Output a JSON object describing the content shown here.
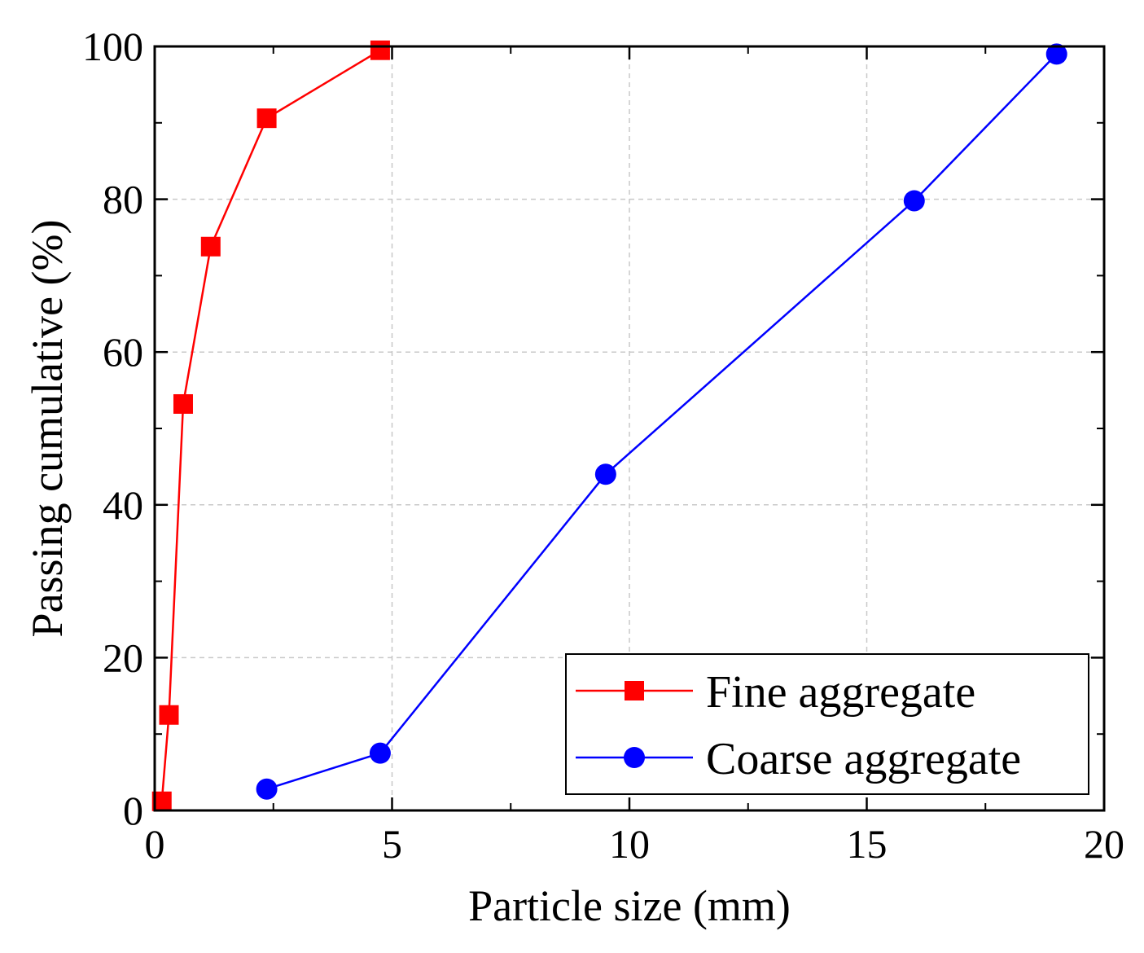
{
  "chart_data": {
    "type": "line",
    "title": "",
    "xlabel": "Particle size (mm)",
    "ylabel": "Passing cumulative (%)",
    "xlim": [
      0,
      20
    ],
    "ylim": [
      0,
      100
    ],
    "xticks": [
      0,
      5,
      10,
      15,
      20
    ],
    "yticks": [
      0,
      20,
      40,
      60,
      80,
      100
    ],
    "grid": true,
    "legend_position": "bottom-right",
    "series": [
      {
        "name": "Fine aggregate",
        "color": "#ff0000",
        "marker": "square",
        "x": [
          0.15,
          0.3,
          0.6,
          1.18,
          2.36,
          4.75
        ],
        "y": [
          1.2,
          12.5,
          53.2,
          73.8,
          90.6,
          99.5
        ]
      },
      {
        "name": "Coarse aggregate",
        "color": "#0000ff",
        "marker": "circle",
        "x": [
          2.36,
          4.75,
          9.5,
          16,
          19
        ],
        "y": [
          2.8,
          7.5,
          44.0,
          79.8,
          99.0
        ]
      }
    ]
  }
}
